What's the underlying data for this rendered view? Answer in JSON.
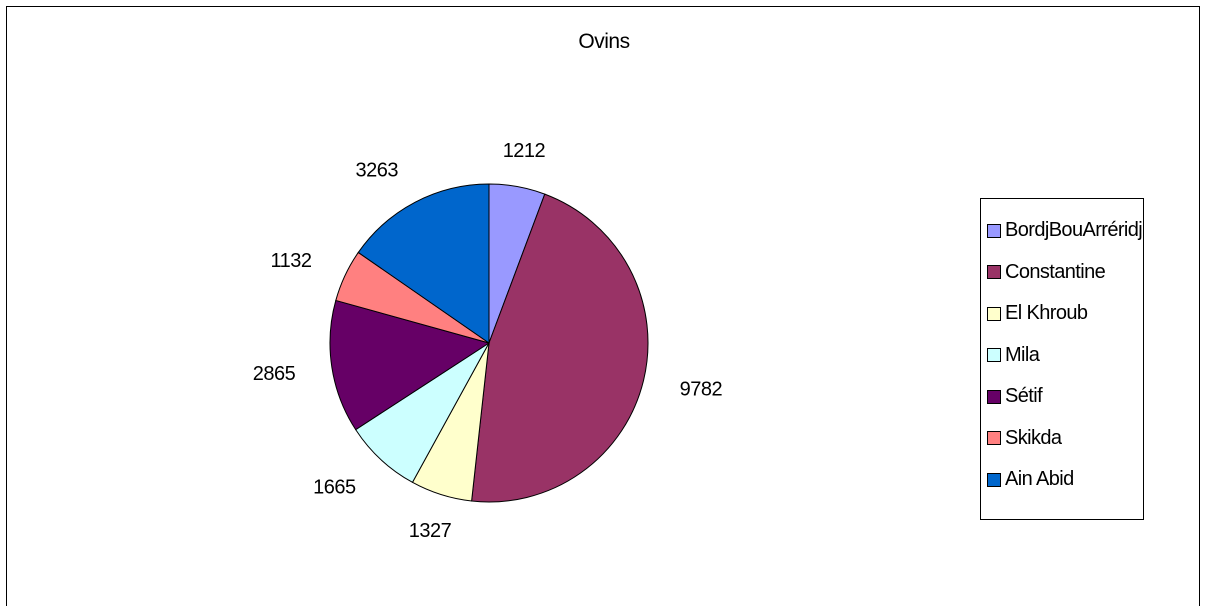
{
  "chart_data": {
    "type": "pie",
    "title": "Ovins",
    "categories": [
      "BordjBouArréridj",
      "Constantine",
      "El  Khroub",
      "Mila",
      "Sétif",
      "Skikda",
      "Ain  Abid"
    ],
    "values": [
      1212,
      9782,
      1327,
      1665,
      2865,
      1132,
      3263
    ],
    "colors": [
      "#9999ff",
      "#993366",
      "#ffffcc",
      "#ccffff",
      "#660066",
      "#ff8080",
      "#0066cc"
    ],
    "legend_position": "right",
    "start_angle_deg": 0,
    "direction": "clockwise"
  }
}
